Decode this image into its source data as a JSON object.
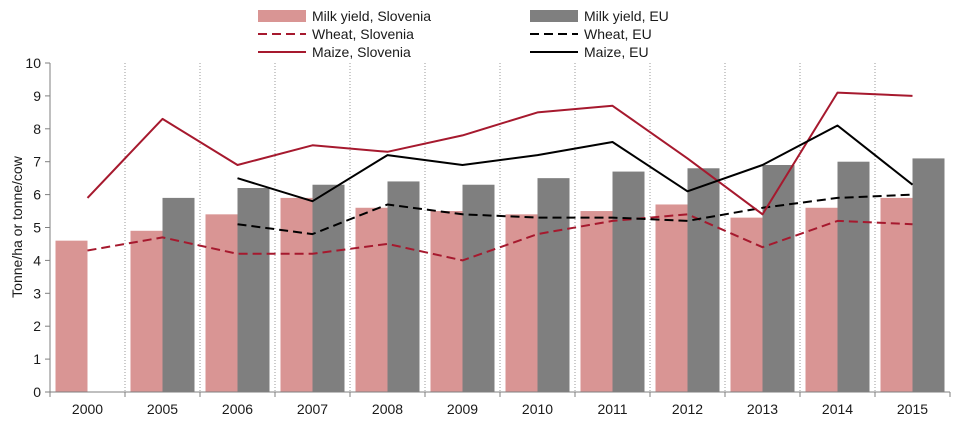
{
  "chart_data": {
    "type": "bar",
    "categories": [
      "2000",
      "2005",
      "2006",
      "2007",
      "2008",
      "2009",
      "2010",
      "2011",
      "2012",
      "2013",
      "2014",
      "2015"
    ],
    "ylabel": "Tonne/ha or tonne/cow",
    "ylim": [
      0,
      10
    ],
    "yticks": [
      "0",
      "1",
      "2",
      "3",
      "4",
      "5",
      "6",
      "7",
      "8",
      "9",
      "10"
    ],
    "grid": "vertical dotted",
    "legend_position": "top",
    "bar_series": [
      {
        "name": "Milk yield, Slovenia",
        "color": "#d99594",
        "values": [
          4.6,
          4.9,
          5.4,
          5.9,
          5.6,
          5.5,
          5.4,
          5.5,
          5.7,
          5.3,
          5.6,
          5.9
        ]
      },
      {
        "name": "Milk yield, EU",
        "color": "#7f7f7f",
        "values": [
          null,
          5.9,
          6.2,
          6.3,
          6.4,
          6.3,
          6.5,
          6.7,
          6.8,
          6.9,
          7.0,
          7.1
        ]
      }
    ],
    "line_series": [
      {
        "name": "Wheat, Slovenia",
        "color": "#a6192e",
        "style": "dashed",
        "values": [
          4.3,
          4.7,
          4.2,
          4.2,
          4.5,
          4.0,
          4.8,
          5.2,
          5.4,
          4.4,
          5.2,
          5.1
        ]
      },
      {
        "name": "Wheat, EU",
        "color": "#000000",
        "style": "dashed",
        "values": [
          null,
          null,
          5.1,
          4.8,
          5.7,
          5.4,
          5.3,
          5.3,
          5.2,
          5.6,
          5.9,
          6.0
        ]
      },
      {
        "name": "Maize, Slovenia",
        "color": "#a6192e",
        "style": "solid",
        "values": [
          5.9,
          8.3,
          6.9,
          7.5,
          7.3,
          7.8,
          8.5,
          8.7,
          7.1,
          5.4,
          9.1,
          9.0
        ]
      },
      {
        "name": "Maize, EU",
        "color": "#000000",
        "style": "solid",
        "values": [
          null,
          null,
          6.5,
          5.8,
          7.2,
          6.9,
          7.2,
          7.6,
          6.1,
          6.9,
          8.1,
          6.3
        ]
      }
    ]
  }
}
